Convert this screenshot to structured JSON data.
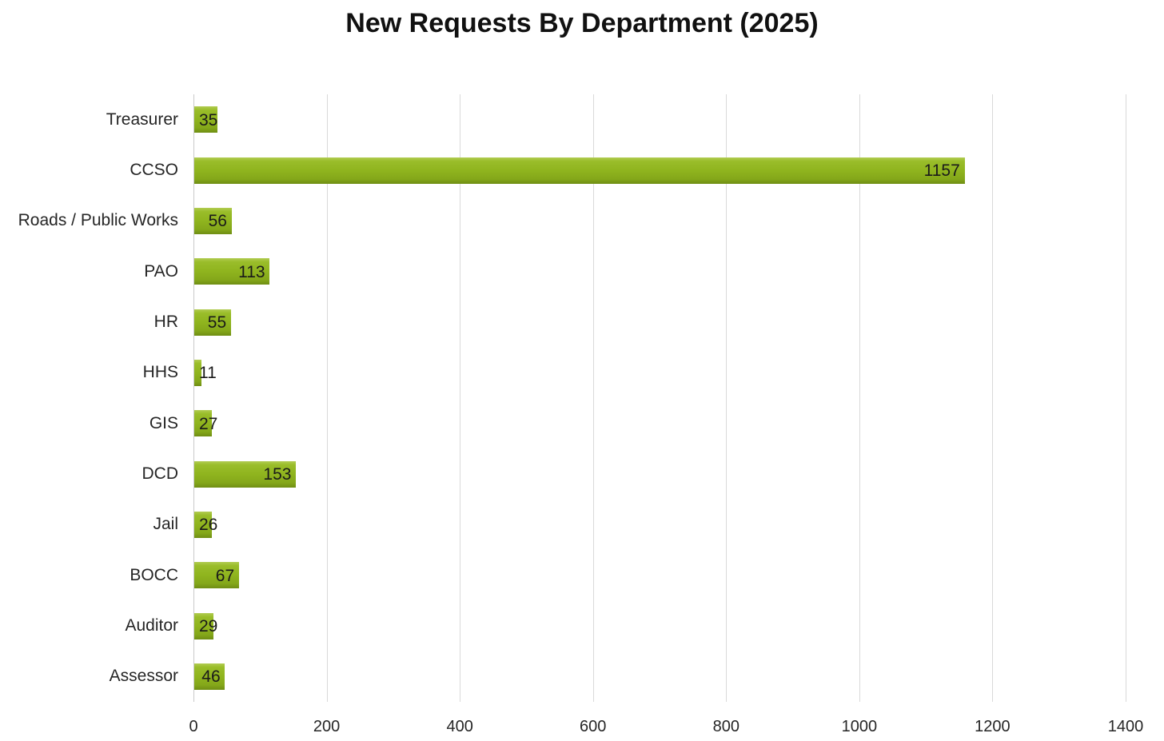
{
  "title": "New Requests By Department (2025)",
  "chart_data": {
    "type": "bar",
    "orientation": "horizontal",
    "title": "New Requests By Department (2025)",
    "categories": [
      "Treasurer",
      "CCSO",
      "Roads / Public Works",
      "PAO",
      "HR",
      "HHS",
      "GIS",
      "DCD",
      "Jail",
      "BOCC",
      "Auditor",
      "Assessor"
    ],
    "values": [
      35,
      1157,
      56,
      113,
      55,
      11,
      27,
      153,
      26,
      67,
      29,
      46
    ],
    "xlabel": "",
    "ylabel": "",
    "xlim": [
      0,
      1400
    ],
    "xticks": [
      0,
      200,
      400,
      600,
      800,
      1000,
      1200,
      1400
    ],
    "grid": "vertical-major",
    "legend_position": "none",
    "data_labels": "inside-end"
  },
  "colors": {
    "background": "#ffffff",
    "bar_main": "#8fb41e",
    "bar_highlight": "#b2cc52",
    "bar_shadow": "#6f8e13",
    "gridline": "#d9d9d9",
    "axis_line": "#c9c9c9",
    "label_text": "#262626",
    "title_text": "#111111"
  }
}
